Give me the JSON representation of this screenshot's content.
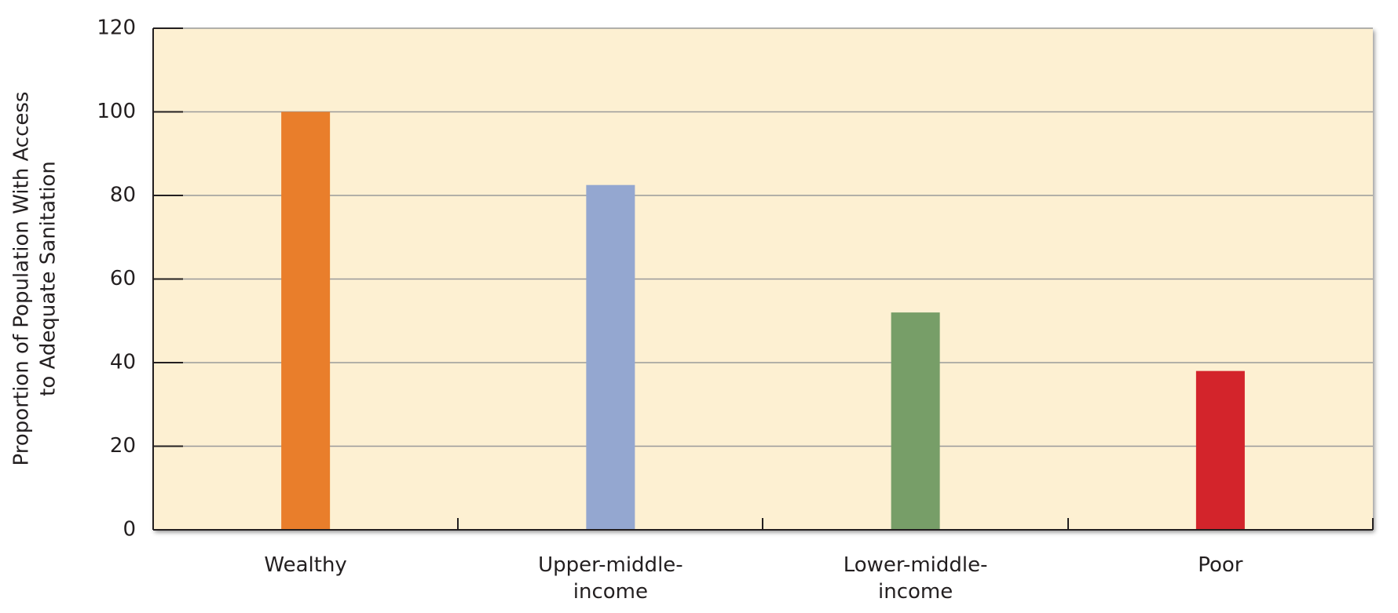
{
  "chart_data": {
    "type": "bar",
    "y_label": [
      "Proportion of Population With Access",
      "to Adequate Sanitation"
    ],
    "categories": [
      "Wealthy",
      "Upper-middle-income",
      "Lower-middle-income",
      "Poor"
    ],
    "values": [
      100,
      82.5,
      52,
      38
    ],
    "colors": [
      "#e97e2b",
      "#94a7d0",
      "#779e68",
      "#d3242b"
    ],
    "ylim": [
      0,
      120
    ],
    "yticks": [
      0,
      20,
      40,
      60,
      80,
      100,
      120
    ],
    "grid": true
  }
}
